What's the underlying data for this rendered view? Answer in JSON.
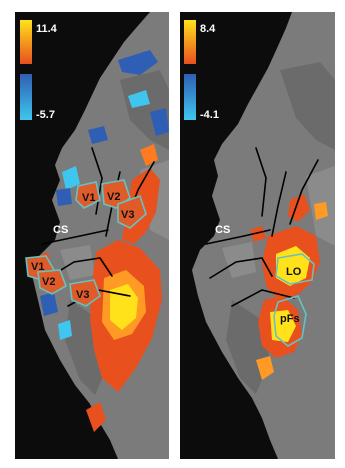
{
  "figure": {
    "left_panel": {
      "scale": {
        "max_label": "11.4",
        "min_label": "-5.7"
      },
      "cs_label": "CS",
      "roi_labels": {
        "v1_upper": "V1",
        "v2_upper": "V2",
        "v3_upper": "V3",
        "v1_lower": "V1",
        "v2_lower": "V2",
        "v3_lower": "V3"
      }
    },
    "right_panel": {
      "scale": {
        "max_label": "8.4",
        "min_label": "-4.1"
      },
      "cs_label": "CS",
      "roi_labels": {
        "lo": "LO",
        "pfs": "pFs"
      }
    }
  },
  "colors": {
    "background": "#0c0c0c",
    "cortex": "#7b7b7b",
    "positive_high": "#ffe21a",
    "positive_low": "#e8501e",
    "negative_high": "#2f5fb4",
    "negative_low": "#3fc6ee",
    "roi_outline": "#66c2c2"
  }
}
